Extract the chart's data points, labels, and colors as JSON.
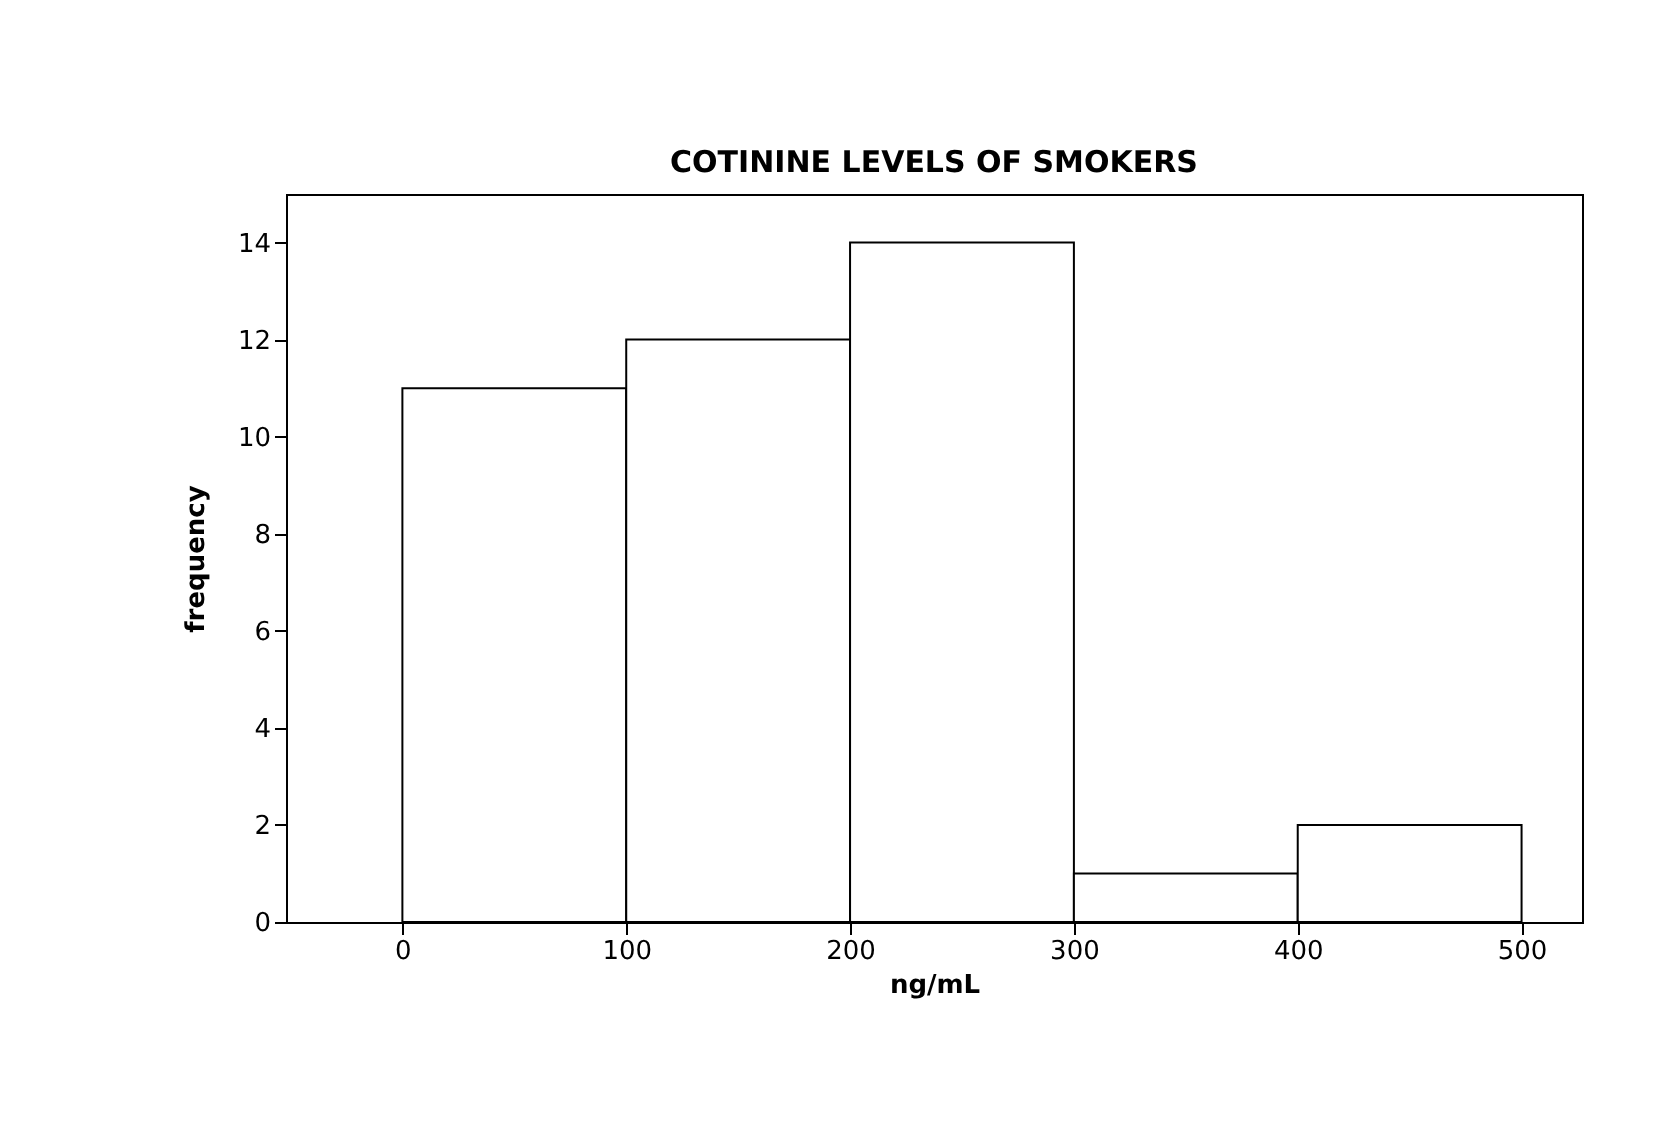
{
  "chart_data": {
    "type": "histogram",
    "title": "COTININE LEVELS OF SMOKERS",
    "xlabel": "ng/mL",
    "ylabel": "frequency",
    "bins": [
      0,
      100,
      200,
      300,
      400,
      500
    ],
    "values": [
      11,
      12,
      14,
      1,
      2
    ],
    "color": "#ffffff",
    "xlim": [
      -52,
      527
    ],
    "xticks": [
      0,
      100,
      200,
      300,
      400,
      500
    ],
    "ylim": [
      0,
      15
    ],
    "yticks": [
      0,
      2,
      4,
      6,
      8,
      10,
      12,
      14
    ],
    "grid": false
  }
}
